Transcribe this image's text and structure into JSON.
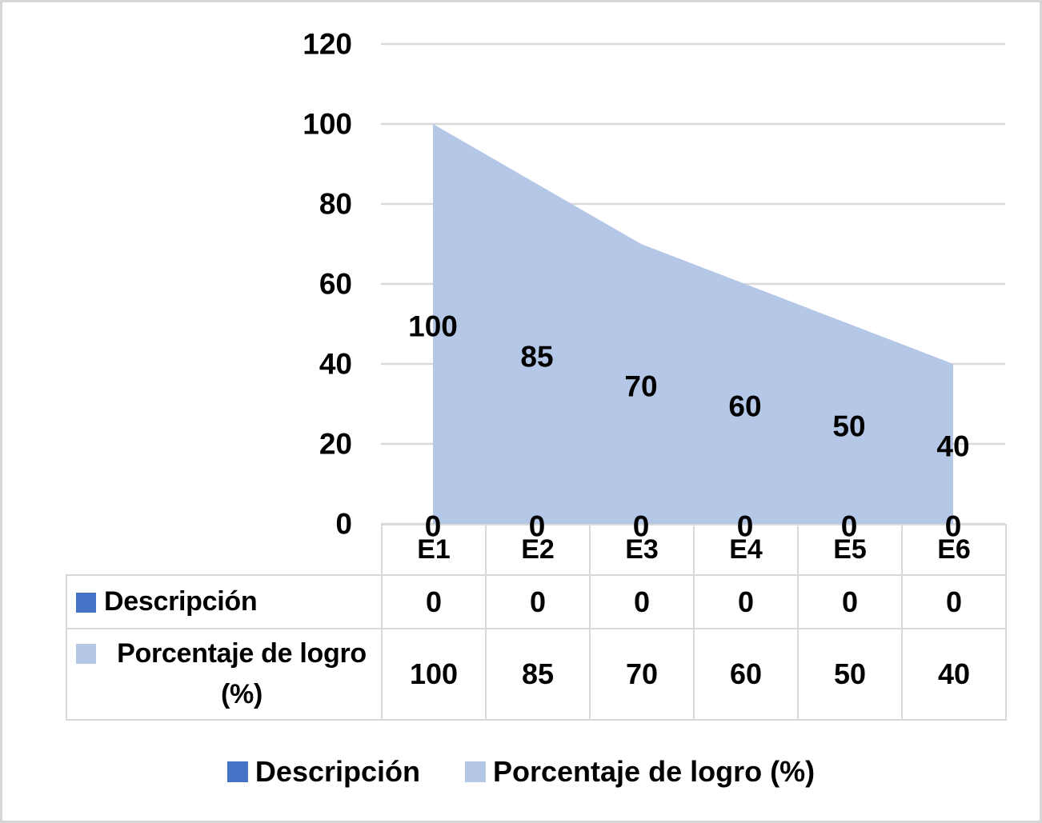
{
  "chart_data": {
    "type": "area",
    "title": "",
    "xlabel": "",
    "ylabel": "",
    "categories": [
      "E1",
      "E2",
      "E3",
      "E4",
      "E5",
      "E6"
    ],
    "series": [
      {
        "name": "Descripción",
        "values": [
          0,
          0,
          0,
          0,
          0,
          0
        ],
        "color": "#4472C4"
      },
      {
        "name": "Porcentaje de logro (%)",
        "values": [
          100,
          85,
          70,
          60,
          50,
          40
        ],
        "color": "#B4C7E7"
      }
    ],
    "ylim": [
      0,
      120
    ],
    "yticks": [
      120,
      100,
      80,
      60,
      40,
      20,
      0
    ],
    "grid": true,
    "data_labels": true,
    "legend_position": "bottom",
    "legend": [
      {
        "label": "Descripción",
        "color": "#4472C4"
      },
      {
        "label": "Porcentaje de logro (%)",
        "color": "#B4C7E7"
      }
    ],
    "data_table": {
      "shown": true,
      "column_headers": [
        "E1",
        "E2",
        "E3",
        "E4",
        "E5",
        "E6"
      ],
      "rows": [
        {
          "label": "Descripción",
          "key_color": "#4472C4",
          "values": [
            "0",
            "0",
            "0",
            "0",
            "0",
            "0"
          ]
        },
        {
          "label": "Porcentaje de logro (%)",
          "key_color": "#B4C7E7",
          "values": [
            "100",
            "85",
            "70",
            "60",
            "50",
            "40"
          ]
        }
      ]
    }
  },
  "colors": {
    "background": "#FFFFFF",
    "outer_border": "#D6D6D6",
    "gridline": "#D9D9D9",
    "table_border": "#D9D9D9",
    "text": "#000000"
  }
}
